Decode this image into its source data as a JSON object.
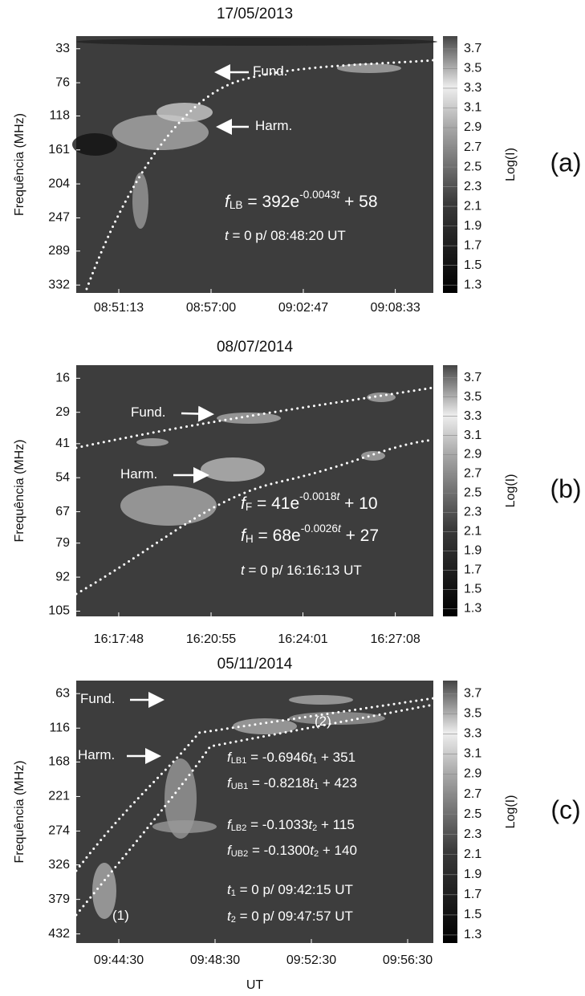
{
  "chart_data": [
    {
      "type": "heatmap",
      "title": "17/05/2013",
      "ylabel": "Frequência (MHz)",
      "y_inverted": true,
      "ylim": [
        17,
        342
      ],
      "yticks": [
        33,
        76,
        118,
        161,
        204,
        247,
        289,
        332
      ],
      "xlim": [
        31713,
        33056
      ],
      "xticks": [
        {
          "value": 31873,
          "label": "08:51:13"
        },
        {
          "value": 32220,
          "label": "08:57:00"
        },
        {
          "value": 32567,
          "label": "09:02:47"
        },
        {
          "value": 32913,
          "label": "09:08:33"
        }
      ],
      "colorbar": {
        "label": "Log(I)",
        "lim": [
          1.22,
          3.83
        ],
        "ticks": [
          1.3,
          1.5,
          1.7,
          1.9,
          2.1,
          2.3,
          2.5,
          2.7,
          2.9,
          3.1,
          3.3,
          3.5,
          3.7
        ]
      },
      "panel_label": "(a)",
      "annotations": [
        {
          "segments": [
            {
              "text": "Fund."
            }
          ]
        },
        {
          "segments": [
            {
              "text": "Harm."
            }
          ]
        },
        {
          "segments": [
            {
              "text": "f",
              "style": "italic"
            },
            {
              "text": "LB",
              "style": "sub"
            },
            {
              "text": " = 392e"
            },
            {
              "text": "-0.0043",
              "style": "sup"
            },
            {
              "text": "t",
              "style": "sup italic"
            },
            {
              "text": "     + 58"
            }
          ]
        },
        {
          "segments": [
            {
              "text": "t",
              "style": "italic"
            },
            {
              "text": " = 0  p/  08:48:20 UT"
            }
          ]
        }
      ]
    },
    {
      "type": "heatmap",
      "title": "08/07/2014",
      "ylabel": "Frequência (MHz)",
      "y_inverted": true,
      "ylim": [
        11,
        107
      ],
      "yticks": [
        16,
        29,
        41,
        54,
        67,
        79,
        92,
        105
      ],
      "xlim": [
        58582,
        59305
      ],
      "xticks": [
        {
          "value": 58668,
          "label": "16:17:48"
        },
        {
          "value": 58855,
          "label": "16:20:55"
        },
        {
          "value": 59041,
          "label": "16:24:01"
        },
        {
          "value": 59228,
          "label": "16:27:08"
        }
      ],
      "colorbar": {
        "label": "Log(I)",
        "lim": [
          1.22,
          3.83
        ],
        "ticks": [
          1.3,
          1.5,
          1.7,
          1.9,
          2.1,
          2.3,
          2.5,
          2.7,
          2.9,
          3.1,
          3.3,
          3.5,
          3.7
        ]
      },
      "panel_label": "(b)",
      "annotations": [
        {
          "segments": [
            {
              "text": "Fund."
            }
          ]
        },
        {
          "segments": [
            {
              "text": "Harm."
            }
          ]
        },
        {
          "segments": [
            {
              "text": "f",
              "style": "italic"
            },
            {
              "text": "F",
              "style": "sub"
            },
            {
              "text": " = 41e"
            },
            {
              "text": "-0.0018",
              "style": "sup"
            },
            {
              "text": "t",
              "style": "sup italic"
            },
            {
              "text": "   + 10"
            }
          ]
        },
        {
          "segments": [
            {
              "text": "f",
              "style": "italic"
            },
            {
              "text": "H",
              "style": "sub"
            },
            {
              "text": " = 68e"
            },
            {
              "text": "-0.0026",
              "style": "sup"
            },
            {
              "text": "t",
              "style": "sup italic"
            },
            {
              "text": "   + 27"
            }
          ]
        },
        {
          "segments": [
            {
              "text": "t",
              "style": "italic"
            },
            {
              "text": " = 0  p/  16:16:13 UT"
            }
          ]
        }
      ]
    },
    {
      "type": "heatmap",
      "title": "05/11/2014",
      "ylabel": "Frequência (MHz)",
      "xlabel": "UT",
      "y_inverted": true,
      "ylim": [
        43,
        446
      ],
      "yticks": [
        63,
        116,
        168,
        221,
        274,
        326,
        379,
        432
      ],
      "xlim": [
        34964,
        35854
      ],
      "xticks": [
        {
          "value": 35070,
          "label": "09:44:30"
        },
        {
          "value": 35310,
          "label": "09:48:30"
        },
        {
          "value": 35550,
          "label": "09:52:30"
        },
        {
          "value": 35790,
          "label": "09:56:30"
        }
      ],
      "colorbar": {
        "label": "Log(I)",
        "lim": [
          1.22,
          3.83
        ],
        "ticks": [
          1.3,
          1.5,
          1.7,
          1.9,
          2.1,
          2.3,
          2.5,
          2.7,
          2.9,
          3.1,
          3.3,
          3.5,
          3.7
        ]
      },
      "panel_label": "(c)",
      "annotations": [
        {
          "segments": [
            {
              "text": "Fund."
            }
          ]
        },
        {
          "segments": [
            {
              "text": "Harm."
            }
          ]
        },
        {
          "segments": [
            {
              "text": "(2)"
            }
          ]
        },
        {
          "segments": [
            {
              "text": "(1)"
            }
          ]
        },
        {
          "segments": [
            {
              "text": "f",
              "style": "italic"
            },
            {
              "text": "LB1",
              "style": "sub"
            },
            {
              "text": " = -0.6946"
            },
            {
              "text": "t",
              "style": "italic"
            },
            {
              "text": "1",
              "style": "sub"
            },
            {
              "text": " + 351"
            }
          ]
        },
        {
          "segments": [
            {
              "text": "f",
              "style": "italic"
            },
            {
              "text": "UB1",
              "style": "sub"
            },
            {
              "text": " = -0.8218"
            },
            {
              "text": "t",
              "style": "italic"
            },
            {
              "text": "1",
              "style": "sub"
            },
            {
              "text": " + 423"
            }
          ]
        },
        {
          "segments": [
            {
              "text": "f",
              "style": "italic"
            },
            {
              "text": "LB2",
              "style": "sub"
            },
            {
              "text": " = -0.1033"
            },
            {
              "text": "t",
              "style": "italic"
            },
            {
              "text": "2",
              "style": "sub"
            },
            {
              "text": " + 115"
            }
          ]
        },
        {
          "segments": [
            {
              "text": "f",
              "style": "italic"
            },
            {
              "text": "UB2",
              "style": "sub"
            },
            {
              "text": " = -0.1300"
            },
            {
              "text": "t",
              "style": "italic"
            },
            {
              "text": "2",
              "style": "sub"
            },
            {
              "text": " + 140"
            }
          ]
        },
        {
          "segments": [
            {
              "text": "t",
              "style": "italic"
            },
            {
              "text": "1",
              "style": "sub"
            },
            {
              "text": " = 0  p/  09:42:15 UT"
            }
          ]
        },
        {
          "segments": [
            {
              "text": "t",
              "style": "italic"
            },
            {
              "text": "2",
              "style": "sub"
            },
            {
              "text": " = 0  p/  09:47:57 UT"
            }
          ]
        }
      ]
    }
  ]
}
